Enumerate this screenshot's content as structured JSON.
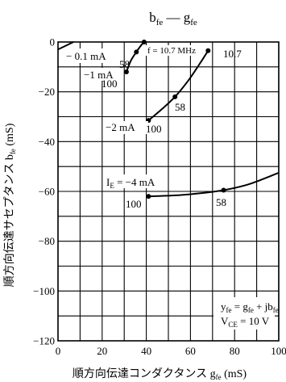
{
  "chart_data": {
    "type": "line",
    "title": {
      "main": "b",
      "main_sub": "fe",
      "dash": " — ",
      "second": "g",
      "second_sub": "fe"
    },
    "xlabel": {
      "prefix": "順方向伝達コンダクタンス  ",
      "sym": "g",
      "sub": "fe",
      "unit": " (mS)"
    },
    "ylabel": {
      "prefix": "順方向伝達サセプタンス  ",
      "sym": "b",
      "sub": "fe",
      "unit": "  (mS)"
    },
    "xlim": [
      0,
      100
    ],
    "ylim": [
      -120,
      0
    ],
    "x_ticks": [
      0,
      20,
      40,
      60,
      80,
      100
    ],
    "x_tick_labels": [
      "0",
      "20",
      "40",
      "60",
      "80",
      "100"
    ],
    "y_ticks": [
      0,
      -20,
      -40,
      -60,
      -80,
      -100,
      -120
    ],
    "y_tick_labels": [
      "0",
      "−20",
      "−40",
      "−60",
      "−80",
      "−100",
      "−120"
    ],
    "grid": true,
    "series": [
      {
        "label": "−0.1 mA",
        "points": [
          [
            0,
            -3
          ],
          [
            7,
            0
          ]
        ],
        "markers": []
      },
      {
        "label": "−1 mA",
        "points": [
          [
            31,
            -12
          ],
          [
            33,
            -7.5
          ],
          [
            35.5,
            -4
          ],
          [
            37.5,
            -1.5
          ],
          [
            39,
            0
          ]
        ],
        "markers": [
          [
            31,
            -12
          ],
          [
            35.5,
            -4
          ],
          [
            39,
            0
          ]
        ]
      },
      {
        "label": "−2 mA",
        "points": [
          [
            41,
            -31.5
          ],
          [
            47,
            -27
          ],
          [
            53,
            -22
          ],
          [
            59,
            -15.5
          ],
          [
            64,
            -9
          ],
          [
            68,
            -3.5
          ]
        ],
        "markers": [
          [
            41,
            -31.5
          ],
          [
            53,
            -22
          ],
          [
            68,
            -3.5
          ]
        ]
      },
      {
        "label": "I_E = −4 mA",
        "points": [
          [
            41,
            -62
          ],
          [
            55,
            -61.5
          ],
          [
            65,
            -60.7
          ],
          [
            75,
            -59.5
          ],
          [
            85,
            -57.5
          ],
          [
            93,
            -55
          ],
          [
            100,
            -52.5
          ]
        ],
        "markers": [
          [
            41,
            -62
          ],
          [
            75,
            -59.5
          ]
        ]
      }
    ],
    "annotations": [
      {
        "id": "cur-01",
        "text": "− 0.1 mA"
      },
      {
        "id": "cur-1",
        "text": "−1 mA"
      },
      {
        "id": "cur-1-100",
        "text": "100"
      },
      {
        "id": "cur-1-58",
        "text": "58"
      },
      {
        "id": "freq",
        "text": "f = 10.7 MHz"
      },
      {
        "id": "freq-val",
        "text": "10.7"
      },
      {
        "id": "cur-2-58",
        "text": "58"
      },
      {
        "id": "cur-2",
        "text": "−2 mA"
      },
      {
        "id": "cur-2-100",
        "text": "100"
      },
      {
        "id": "cur-4-sym",
        "text": "I"
      },
      {
        "id": "cur-4-sub",
        "text": "E"
      },
      {
        "id": "cur-4-rest",
        "text": " = −4 mA"
      },
      {
        "id": "cur-4-100",
        "text": "100"
      },
      {
        "id": "cur-4-58",
        "text": "58"
      }
    ],
    "conditions": {
      "line1": {
        "y": "y",
        "y_sub": "fe",
        "eq": " = g",
        "g_sub": "fe",
        "plus": " + jb",
        "b_sub": "fe"
      },
      "line2": {
        "v": "V",
        "v_sub": "CE",
        "eq": " = 10 V"
      }
    }
  }
}
